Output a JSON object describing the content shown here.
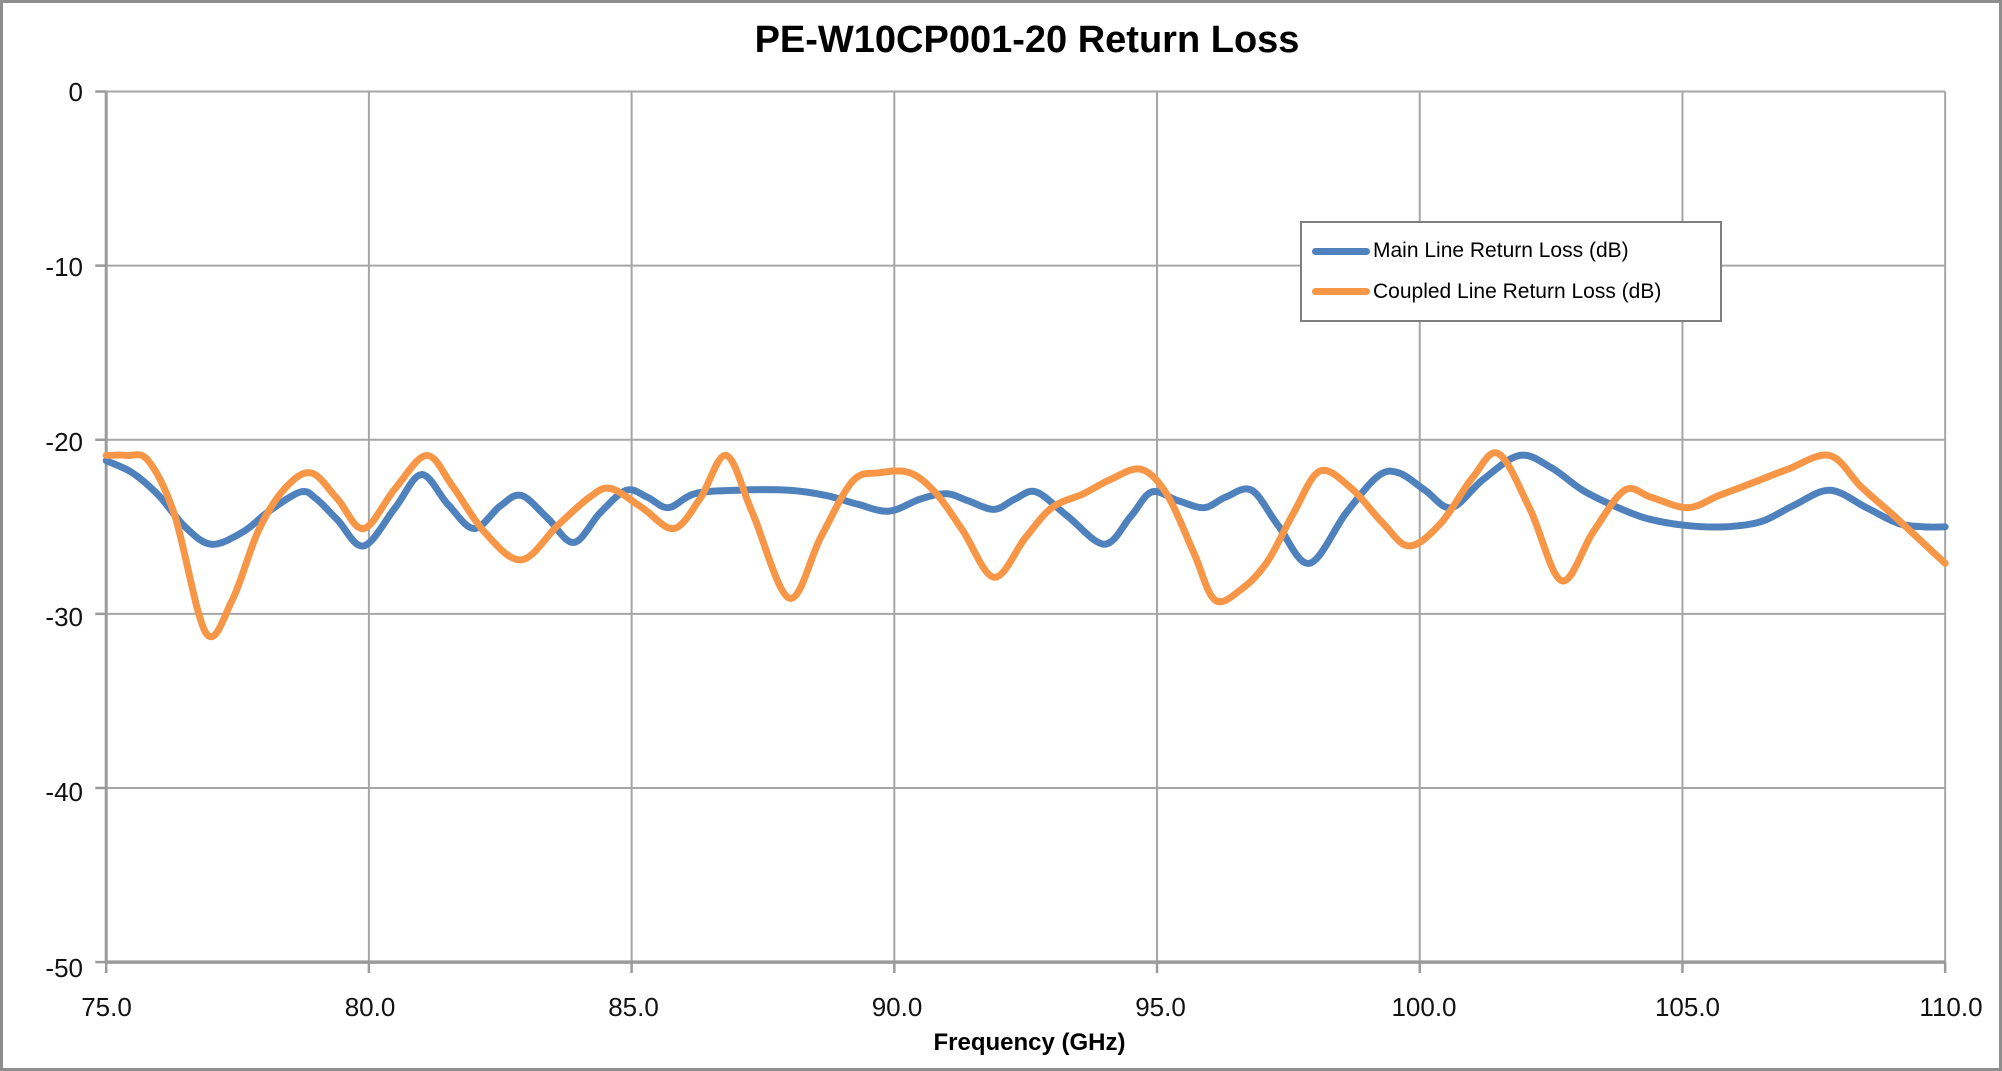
{
  "chart": {
    "title": "PE-W10CP001-20 Return Loss"
  },
  "chart_data": {
    "type": "line",
    "title": "PE-W10CP001-20 Return Loss",
    "xlabel": "Frequency (GHz)",
    "ylabel": "",
    "xlim": [
      75,
      110
    ],
    "ylim": [
      -50,
      0
    ],
    "x_ticks": [
      75,
      80,
      85,
      90,
      95,
      100,
      105,
      110
    ],
    "x_tick_labels": [
      "75.0",
      "80.0",
      "85.0",
      "90.0",
      "95.0",
      "100.0",
      "105.0",
      "110.0"
    ],
    "y_ticks": [
      0,
      -10,
      -20,
      -30,
      -40,
      -50
    ],
    "y_tick_labels": [
      "0",
      "-10",
      "-20",
      "-30",
      "-40",
      "-50"
    ],
    "grid": true,
    "legend_position": "inside-upper-right",
    "colors": {
      "gridline": "#a6a6a6",
      "axis": "#9b9b9b",
      "border": "#8e8e8e",
      "background": "#ffffff",
      "text": "#000000"
    },
    "series": [
      {
        "name": "Main Line Return Loss (dB)",
        "color": "#4F81BD",
        "points": [
          [
            75.0,
            -21.2
          ],
          [
            75.5,
            -21.9
          ],
          [
            76.0,
            -23.2
          ],
          [
            76.5,
            -25.0
          ],
          [
            77.0,
            -26.0
          ],
          [
            77.6,
            -25.3
          ],
          [
            78.1,
            -24.1
          ],
          [
            78.7,
            -23.0
          ],
          [
            79.0,
            -23.4
          ],
          [
            79.4,
            -24.6
          ],
          [
            79.9,
            -26.1
          ],
          [
            80.5,
            -23.9
          ],
          [
            81.0,
            -22.0
          ],
          [
            81.5,
            -23.7
          ],
          [
            82.0,
            -25.1
          ],
          [
            82.5,
            -23.8
          ],
          [
            82.9,
            -23.2
          ],
          [
            83.4,
            -24.5
          ],
          [
            83.9,
            -25.9
          ],
          [
            84.4,
            -24.2
          ],
          [
            84.9,
            -22.9
          ],
          [
            85.3,
            -23.3
          ],
          [
            85.7,
            -23.9
          ],
          [
            86.2,
            -23.1
          ],
          [
            87.0,
            -22.9
          ],
          [
            88.0,
            -22.9
          ],
          [
            88.7,
            -23.2
          ],
          [
            89.3,
            -23.7
          ],
          [
            89.9,
            -24.1
          ],
          [
            90.5,
            -23.4
          ],
          [
            91.0,
            -23.1
          ],
          [
            91.4,
            -23.5
          ],
          [
            91.9,
            -24.0
          ],
          [
            92.3,
            -23.4
          ],
          [
            92.7,
            -23.0
          ],
          [
            93.3,
            -24.4
          ],
          [
            94.0,
            -26.0
          ],
          [
            94.5,
            -24.4
          ],
          [
            94.9,
            -23.0
          ],
          [
            95.4,
            -23.5
          ],
          [
            95.9,
            -23.9
          ],
          [
            96.3,
            -23.3
          ],
          [
            96.8,
            -22.9
          ],
          [
            97.3,
            -24.9
          ],
          [
            97.9,
            -27.1
          ],
          [
            98.6,
            -24.2
          ],
          [
            99.2,
            -22.1
          ],
          [
            99.6,
            -21.9
          ],
          [
            100.1,
            -22.9
          ],
          [
            100.6,
            -23.9
          ],
          [
            101.2,
            -22.3
          ],
          [
            101.9,
            -20.9
          ],
          [
            102.5,
            -21.6
          ],
          [
            103.1,
            -22.9
          ],
          [
            103.7,
            -23.8
          ],
          [
            104.3,
            -24.5
          ],
          [
            105.0,
            -24.9
          ],
          [
            105.8,
            -25.0
          ],
          [
            106.5,
            -24.7
          ],
          [
            107.1,
            -23.8
          ],
          [
            107.8,
            -22.9
          ],
          [
            108.5,
            -23.9
          ],
          [
            109.1,
            -24.8
          ],
          [
            109.6,
            -25.0
          ],
          [
            110.0,
            -25.0
          ]
        ]
      },
      {
        "name": "Coupled Line Return Loss (dB)",
        "color": "#F79646",
        "points": [
          [
            75.0,
            -20.9
          ],
          [
            75.4,
            -20.9
          ],
          [
            75.8,
            -21.2
          ],
          [
            76.3,
            -24.3
          ],
          [
            76.9,
            -31.1
          ],
          [
            77.4,
            -29.2
          ],
          [
            77.9,
            -25.2
          ],
          [
            78.4,
            -22.8
          ],
          [
            78.9,
            -21.9
          ],
          [
            79.4,
            -23.4
          ],
          [
            79.9,
            -25.1
          ],
          [
            80.5,
            -22.8
          ],
          [
            81.1,
            -20.9
          ],
          [
            81.6,
            -22.7
          ],
          [
            82.2,
            -25.3
          ],
          [
            82.9,
            -26.9
          ],
          [
            83.6,
            -24.9
          ],
          [
            84.2,
            -23.3
          ],
          [
            84.6,
            -22.8
          ],
          [
            85.2,
            -23.9
          ],
          [
            85.8,
            -25.1
          ],
          [
            86.3,
            -23.4
          ],
          [
            86.8,
            -20.9
          ],
          [
            87.3,
            -24.2
          ],
          [
            88.0,
            -29.1
          ],
          [
            88.6,
            -25.6
          ],
          [
            89.2,
            -22.4
          ],
          [
            89.7,
            -21.9
          ],
          [
            90.3,
            -21.9
          ],
          [
            90.8,
            -23.1
          ],
          [
            91.3,
            -25.2
          ],
          [
            91.9,
            -27.9
          ],
          [
            92.5,
            -25.6
          ],
          [
            93.0,
            -23.9
          ],
          [
            93.6,
            -23.1
          ],
          [
            94.1,
            -22.3
          ],
          [
            94.7,
            -21.7
          ],
          [
            95.2,
            -23.2
          ],
          [
            95.7,
            -26.5
          ],
          [
            96.1,
            -29.2
          ],
          [
            96.6,
            -28.6
          ],
          [
            97.1,
            -27.0
          ],
          [
            97.6,
            -24.2
          ],
          [
            98.1,
            -21.8
          ],
          [
            98.7,
            -22.8
          ],
          [
            99.3,
            -24.8
          ],
          [
            99.8,
            -26.1
          ],
          [
            100.4,
            -24.8
          ],
          [
            101.0,
            -22.2
          ],
          [
            101.5,
            -20.8
          ],
          [
            102.1,
            -24.0
          ],
          [
            102.7,
            -28.1
          ],
          [
            103.3,
            -25.3
          ],
          [
            103.9,
            -22.9
          ],
          [
            104.4,
            -23.3
          ],
          [
            105.1,
            -23.9
          ],
          [
            105.7,
            -23.2
          ],
          [
            106.4,
            -22.4
          ],
          [
            107.0,
            -21.7
          ],
          [
            107.8,
            -20.9
          ],
          [
            108.4,
            -22.7
          ],
          [
            109.0,
            -24.3
          ],
          [
            109.5,
            -25.7
          ],
          [
            110.0,
            -27.1
          ]
        ]
      }
    ]
  }
}
